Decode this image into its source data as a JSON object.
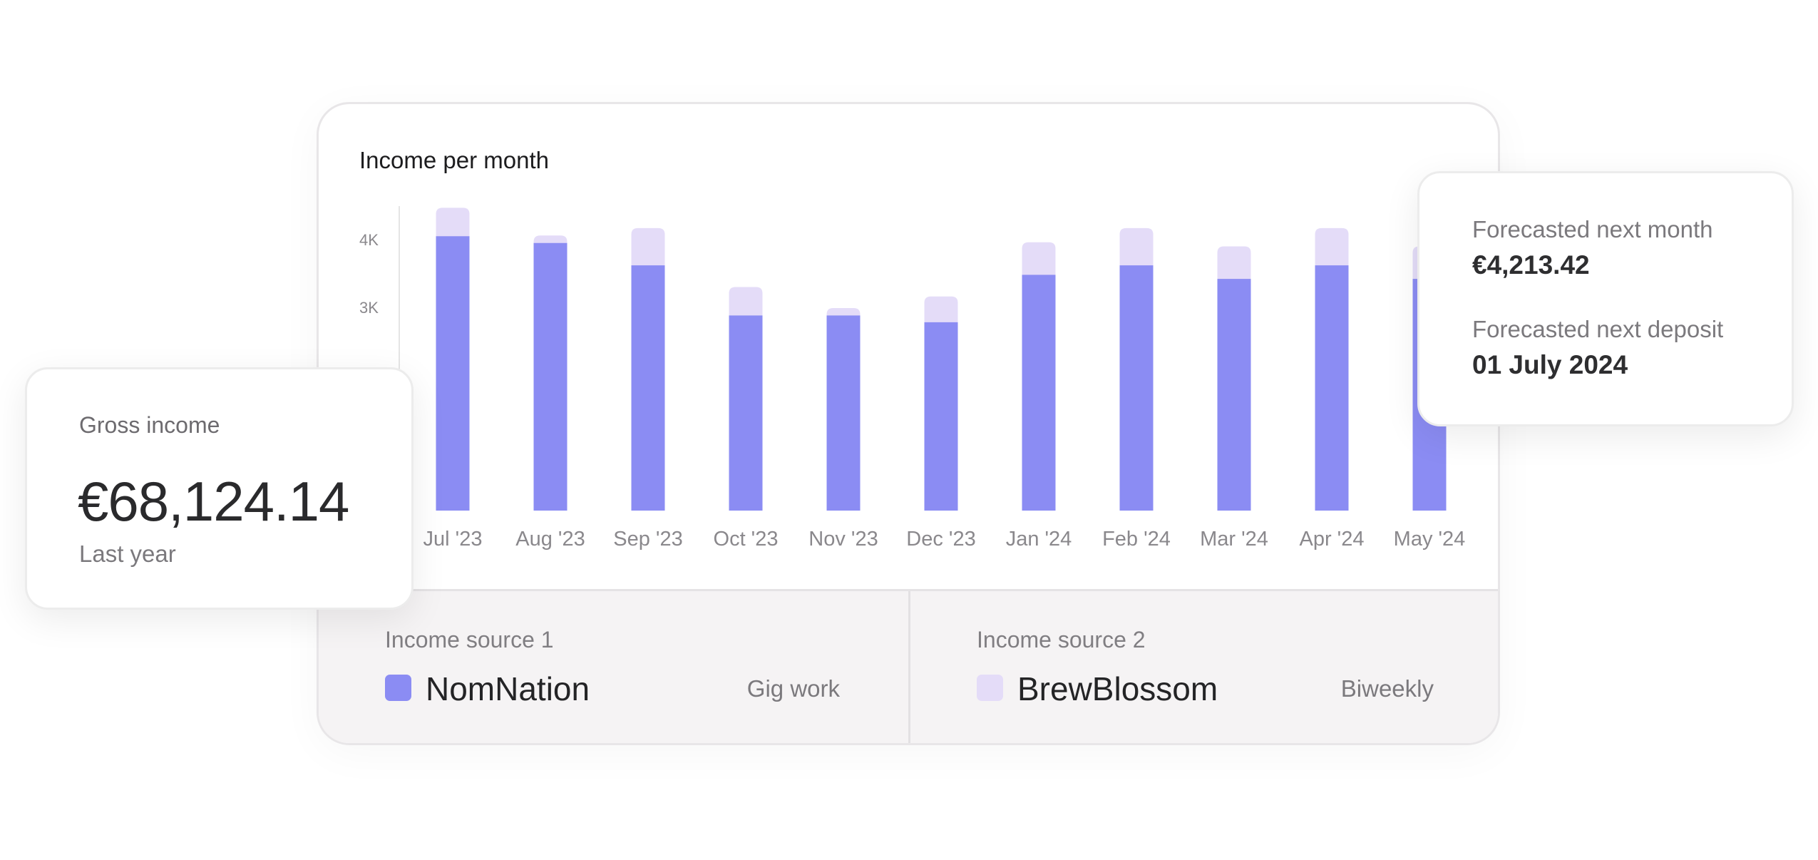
{
  "chart_title": "Income per month",
  "colors": {
    "primary_bar": "#8b8cf3",
    "secondary_bar": "#e4dcf8",
    "axis_line": "#e5e5e5",
    "tick_text": "#8a888c"
  },
  "chart_data": {
    "type": "bar",
    "stacked": true,
    "title": "Income per month",
    "categories": [
      "Jul '23",
      "Aug '23",
      "Sep '23",
      "Oct '23",
      "Nov '23",
      "Dec '23",
      "Jan '24",
      "Feb '24",
      "Mar '24",
      "Apr '24",
      "May '24"
    ],
    "series": [
      {
        "name": "NomNation",
        "color": "#8b8cf3",
        "values": [
          4050,
          3950,
          3620,
          2880,
          2880,
          2780,
          3480,
          3620,
          3420,
          3620,
          3420
        ]
      },
      {
        "name": "BrewBlossom",
        "color": "#e4dcf8",
        "values": [
          420,
          110,
          550,
          420,
          110,
          380,
          480,
          550,
          480,
          550,
          480
        ]
      }
    ],
    "yticks": [
      {
        "value": 3000,
        "label": "3K"
      },
      {
        "value": 4000,
        "label": "4K"
      }
    ],
    "ylim": [
      0,
      5000
    ],
    "grid": false,
    "legend": "bottom"
  },
  "gross_income": {
    "label": "Gross income",
    "value": "€68,124.14",
    "period": "Last year"
  },
  "forecast": {
    "next_month_label": "Forecasted next month",
    "next_month_value": "€4,213.42",
    "next_deposit_label": "Forecasted next deposit",
    "next_deposit_value": "01 July 2024"
  },
  "income_sources": [
    {
      "heading": "Income source 1",
      "name": "NomNation",
      "tag": "Gig work",
      "color": "#8b8cf3"
    },
    {
      "heading": "Income source 2",
      "name": "BrewBlossom",
      "tag": "Biweekly",
      "color": "#e4dcf8"
    }
  ]
}
